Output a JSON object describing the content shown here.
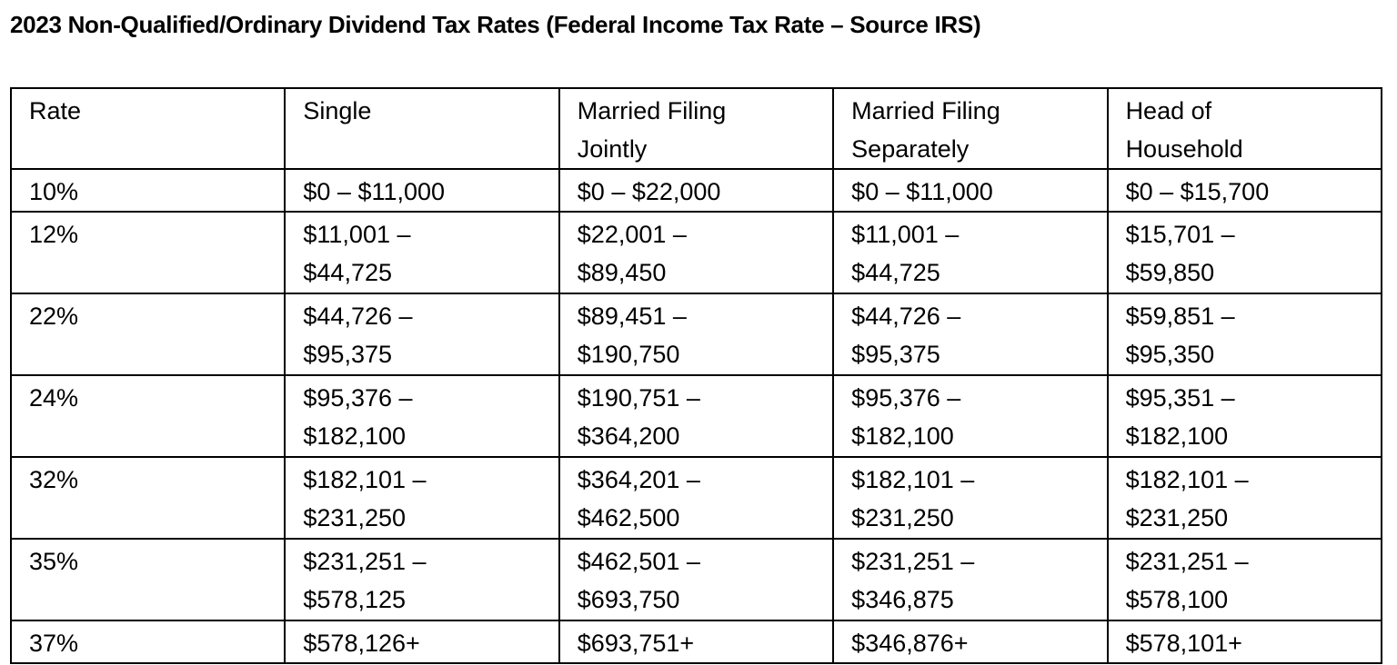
{
  "title": "2023 Non-Qualified/Ordinary Dividend Tax Rates (Federal Income Tax Rate – Source IRS)",
  "headers": [
    [
      "Rate"
    ],
    [
      "Single"
    ],
    [
      "Married Filing",
      "Jointly"
    ],
    [
      "Married Filing",
      "Separately"
    ],
    [
      "Head of",
      "Household"
    ]
  ],
  "rows": [
    [
      [
        "10%"
      ],
      [
        "$0 – $11,000"
      ],
      [
        "$0 – $22,000"
      ],
      [
        "$0 – $11,000"
      ],
      [
        "$0 – $15,700"
      ]
    ],
    [
      [
        "12%"
      ],
      [
        "$11,001 –",
        "$44,725"
      ],
      [
        "$22,001 –",
        "$89,450"
      ],
      [
        "$11,001 –",
        "$44,725"
      ],
      [
        "$15,701 –",
        "$59,850"
      ]
    ],
    [
      [
        "22%"
      ],
      [
        "$44,726 –",
        "$95,375"
      ],
      [
        "$89,451 –",
        "$190,750"
      ],
      [
        "$44,726 –",
        "$95,375"
      ],
      [
        "$59,851 –",
        "$95,350"
      ]
    ],
    [
      [
        "24%"
      ],
      [
        "$95,376 –",
        "$182,100"
      ],
      [
        "$190,751 –",
        "$364,200"
      ],
      [
        "$95,376 –",
        "$182,100"
      ],
      [
        "$95,351 –",
        "$182,100"
      ]
    ],
    [
      [
        "32%"
      ],
      [
        "$182,101 –",
        "$231,250"
      ],
      [
        "$364,201 –",
        "$462,500"
      ],
      [
        "$182,101 –",
        "$231,250"
      ],
      [
        "$182,101 –",
        "$231,250"
      ]
    ],
    [
      [
        "35%"
      ],
      [
        "$231,251 –",
        "$578,125"
      ],
      [
        "$462,501 –",
        "$693,750"
      ],
      [
        "$231,251 –",
        "$346,875"
      ],
      [
        "$231,251 –",
        "$578,100"
      ]
    ],
    [
      [
        "37%"
      ],
      [
        "$578,126+"
      ],
      [
        "$693,751+"
      ],
      [
        "$346,876+"
      ],
      [
        "$578,101+"
      ]
    ]
  ]
}
